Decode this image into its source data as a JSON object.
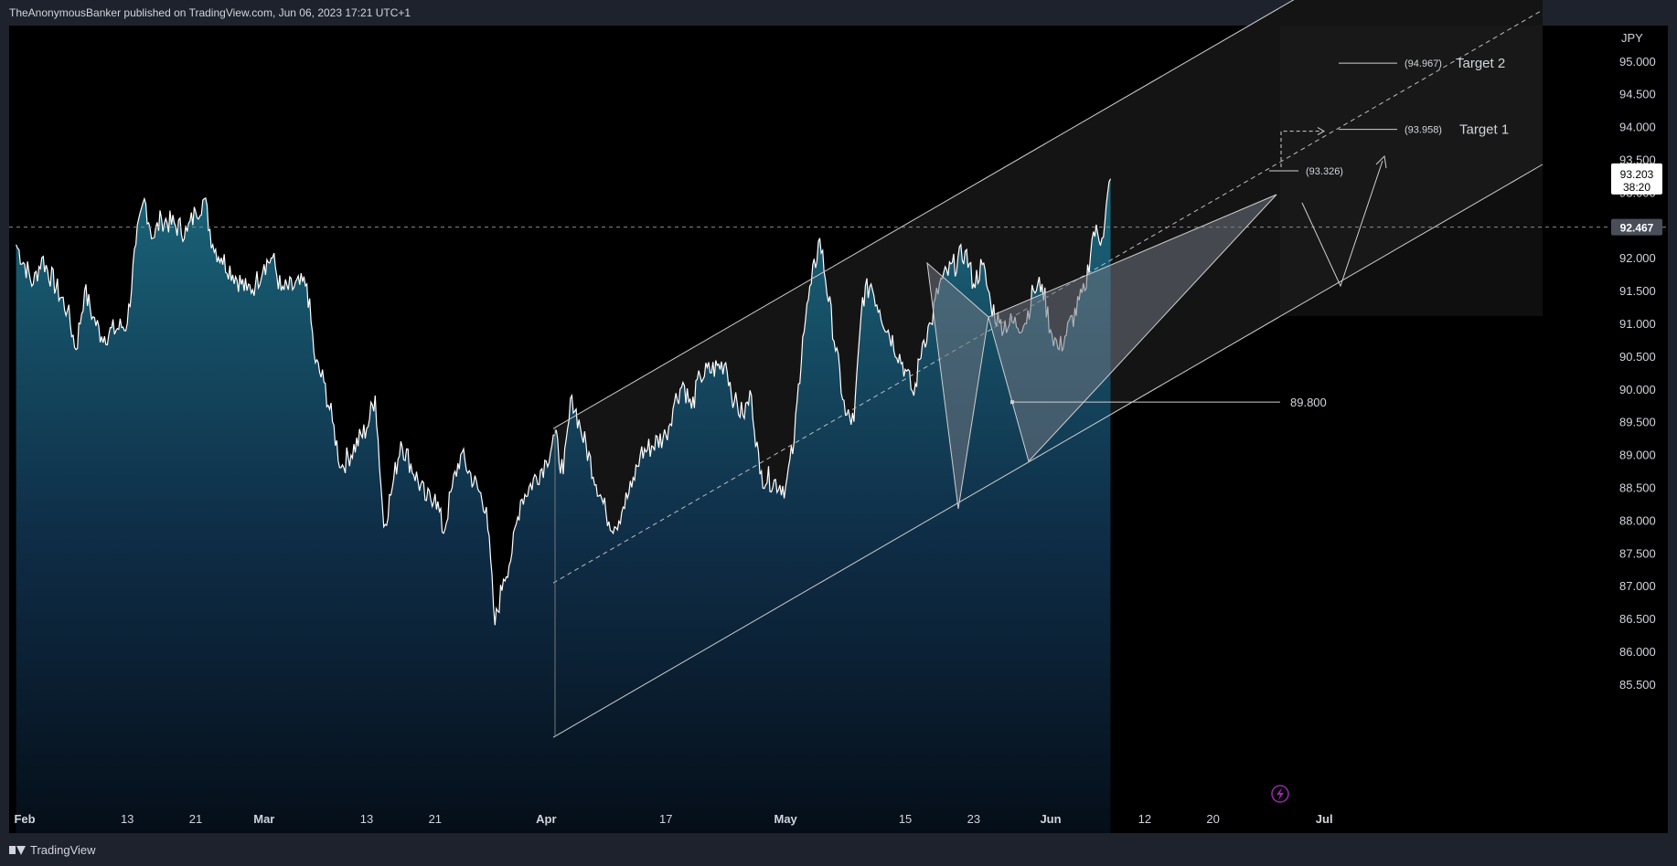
{
  "header": {
    "publish_line": "TheAnonymousBanker published on TradingView.com, Jun 06, 2023 17:21 UTC+1"
  },
  "footer": {
    "brand": "TradingView"
  },
  "colors": {
    "background": "#000000",
    "frame": "#1e222d",
    "price_line": "#ffffff",
    "area_top": "#1b6a80",
    "area_bottom": "#040d17",
    "annotation": "#d1d4dc"
  },
  "chart_data": {
    "type": "area",
    "currency_label": "JPY",
    "ylim": [
      85.3,
      95.9
    ],
    "y_ticks": [
      "95.000",
      "94.500",
      "94.000",
      "93.500",
      "93.000",
      "92.500",
      "92.000",
      "91.500",
      "91.000",
      "90.500",
      "90.000",
      "89.500",
      "89.000",
      "88.500",
      "88.000",
      "87.500",
      "87.000",
      "86.500",
      "86.000",
      "85.500"
    ],
    "x_ticks": [
      {
        "label": "Feb",
        "date": "2023-02-01",
        "bold": true
      },
      {
        "label": "13",
        "date": "2023-02-13"
      },
      {
        "label": "21",
        "date": "2023-02-21"
      },
      {
        "label": "Mar",
        "date": "2023-03-01",
        "bold": true
      },
      {
        "label": "13",
        "date": "2023-03-13"
      },
      {
        "label": "21",
        "date": "2023-03-21"
      },
      {
        "label": "Apr",
        "date": "2023-04-03",
        "bold": true
      },
      {
        "label": "17",
        "date": "2023-04-17"
      },
      {
        "label": "May",
        "date": "2023-05-01",
        "bold": true
      },
      {
        "label": "15",
        "date": "2023-05-15"
      },
      {
        "label": "23",
        "date": "2023-05-23"
      },
      {
        "label": "Jun",
        "date": "2023-06-01",
        "bold": true
      },
      {
        "label": "12",
        "date": "2023-06-12"
      },
      {
        "label": "20",
        "date": "2023-06-20"
      },
      {
        "label": "Jul",
        "date": "2023-07-03",
        "bold": true
      }
    ],
    "series": [
      {
        "points": [
          [
            "2023-01-31",
            92.2
          ],
          [
            "2023-02-02",
            91.6
          ],
          [
            "2023-02-03",
            92.0
          ],
          [
            "2023-02-06",
            91.2
          ],
          [
            "2023-02-07",
            90.6
          ],
          [
            "2023-02-08",
            91.5
          ],
          [
            "2023-02-09",
            91.1
          ],
          [
            "2023-02-10",
            90.8
          ],
          [
            "2023-02-13",
            91.0
          ],
          [
            "2023-02-14",
            92.2
          ],
          [
            "2023-02-15",
            92.9
          ],
          [
            "2023-02-16",
            92.3
          ],
          [
            "2023-02-17",
            92.6
          ],
          [
            "2023-02-20",
            92.4
          ],
          [
            "2023-02-21",
            92.7
          ],
          [
            "2023-02-22",
            92.9
          ],
          [
            "2023-02-23",
            92.2
          ],
          [
            "2023-02-24",
            92.0
          ],
          [
            "2023-02-27",
            91.5
          ],
          [
            "2023-02-28",
            91.6
          ],
          [
            "2023-03-01",
            91.9
          ],
          [
            "2023-03-02",
            92.0
          ],
          [
            "2023-03-03",
            91.5
          ],
          [
            "2023-03-06",
            91.6
          ],
          [
            "2023-03-07",
            90.4
          ],
          [
            "2023-03-08",
            90.1
          ],
          [
            "2023-03-09",
            89.5
          ],
          [
            "2023-03-10",
            88.8
          ],
          [
            "2023-03-13",
            89.4
          ],
          [
            "2023-03-14",
            89.9
          ],
          [
            "2023-03-15",
            87.9
          ],
          [
            "2023-03-16",
            88.5
          ],
          [
            "2023-03-17",
            89.2
          ],
          [
            "2023-03-20",
            88.3
          ],
          [
            "2023-03-21",
            88.4
          ],
          [
            "2023-03-22",
            87.8
          ],
          [
            "2023-03-23",
            88.5
          ],
          [
            "2023-03-24",
            89.0
          ],
          [
            "2023-03-27",
            88.2
          ],
          [
            "2023-03-28",
            86.4
          ],
          [
            "2023-03-29",
            87.1
          ],
          [
            "2023-03-30",
            87.5
          ],
          [
            "2023-03-31",
            88.3
          ],
          [
            "2023-04-03",
            88.9
          ],
          [
            "2023-04-04",
            89.3
          ],
          [
            "2023-04-05",
            88.7
          ],
          [
            "2023-04-06",
            89.9
          ],
          [
            "2023-04-07",
            89.4
          ],
          [
            "2023-04-10",
            88.1
          ],
          [
            "2023-04-11",
            87.9
          ],
          [
            "2023-04-12",
            88.2
          ],
          [
            "2023-04-13",
            88.5
          ],
          [
            "2023-04-14",
            89.0
          ],
          [
            "2023-04-17",
            89.3
          ],
          [
            "2023-04-18",
            89.8
          ],
          [
            "2023-04-19",
            90.1
          ],
          [
            "2023-04-20",
            89.7
          ],
          [
            "2023-04-21",
            90.2
          ],
          [
            "2023-04-24",
            90.4
          ],
          [
            "2023-04-25",
            89.8
          ],
          [
            "2023-04-26",
            89.6
          ],
          [
            "2023-04-27",
            89.9
          ],
          [
            "2023-04-28",
            88.7
          ],
          [
            "2023-05-01",
            88.5
          ],
          [
            "2023-05-02",
            89.2
          ],
          [
            "2023-05-03",
            90.8
          ],
          [
            "2023-05-04",
            91.6
          ],
          [
            "2023-05-05",
            92.3
          ],
          [
            "2023-05-08",
            89.6
          ],
          [
            "2023-05-09",
            89.5
          ],
          [
            "2023-05-10",
            91.4
          ],
          [
            "2023-05-11",
            91.6
          ],
          [
            "2023-05-12",
            91.2
          ],
          [
            "2023-05-15",
            90.3
          ],
          [
            "2023-05-16",
            89.9
          ],
          [
            "2023-05-17",
            90.7
          ],
          [
            "2023-05-18",
            91.0
          ],
          [
            "2023-05-19",
            91.6
          ],
          [
            "2023-05-22",
            92.1
          ],
          [
            "2023-05-23",
            91.6
          ],
          [
            "2023-05-24",
            91.9
          ],
          [
            "2023-05-25",
            91.3
          ],
          [
            "2023-05-26",
            91.0
          ],
          [
            "2023-05-29",
            91.0
          ],
          [
            "2023-05-30",
            91.5
          ],
          [
            "2023-05-31",
            91.6
          ],
          [
            "2023-06-01",
            90.9
          ],
          [
            "2023-06-02",
            90.6
          ],
          [
            "2023-06-05",
            91.5
          ],
          [
            "2023-06-06",
            92.4
          ],
          [
            "2023-06-07",
            92.3
          ],
          [
            "2023-06-08",
            93.203
          ]
        ]
      }
    ],
    "last_price": {
      "value": "93.203",
      "countdown": "38:20"
    },
    "crosshair_price": {
      "value": "92.467"
    },
    "annotations": [
      {
        "type": "horizontal",
        "label": "89.800",
        "value": 89.8
      },
      {
        "type": "target",
        "label": "(93.326)",
        "value": 93.326
      },
      {
        "type": "target",
        "label": "(93.958)",
        "name": "Target 1",
        "value": 93.958
      },
      {
        "type": "target",
        "label": "(94.967)",
        "name": "Target 2",
        "value": 94.967
      }
    ],
    "grid": false
  }
}
